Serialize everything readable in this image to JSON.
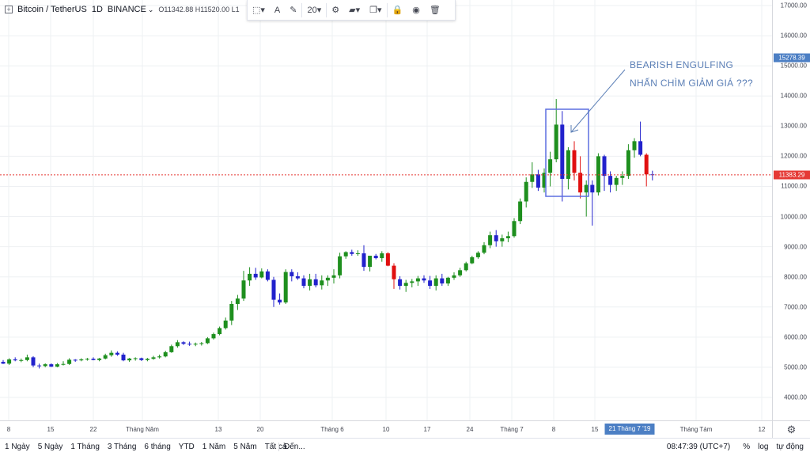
{
  "header": {
    "symbol": "Bitcoin / TetherUS",
    "interval": "1D",
    "exchange": "BINANCE",
    "exchange_caret": "⌄",
    "open": "O11342.88",
    "high": "H11520.00",
    "low": "L1"
  },
  "toolbar": {
    "items": [
      {
        "name": "selection-tool",
        "icon": "dashed-square-icon",
        "label": "⬚▾"
      },
      {
        "name": "text-color",
        "icon": "letter-a-icon",
        "label": "A"
      },
      {
        "name": "line-color",
        "icon": "pencil-icon",
        "label": "✎"
      },
      {
        "name": "font-size",
        "icon": "font-size",
        "label": "20▾"
      },
      {
        "name": "settings",
        "icon": "gear-icon",
        "label": "⚙"
      },
      {
        "name": "template",
        "icon": "template-icon",
        "label": "▰▾"
      },
      {
        "name": "clone",
        "icon": "clone-icon",
        "label": "❐▾"
      },
      {
        "name": "lock",
        "icon": "lock-icon",
        "label": "🔒"
      },
      {
        "name": "visibility",
        "icon": "eye-icon",
        "label": "◉"
      },
      {
        "name": "delete",
        "icon": "trash-icon",
        "label": "🗑"
      }
    ]
  },
  "annotation": {
    "line1": "BEARISH ENGULFING",
    "line2": "NHẤN CHÌM GIẢM GIÁ ???"
  },
  "price_axis": {
    "ticks": [
      "17000.00",
      "16000.00",
      "15000.00",
      "14000.00",
      "13000.00",
      "12000.00",
      "11000.00",
      "10000.00",
      "9000.00",
      "8000.00",
      "7000.00",
      "6000.00",
      "5000.00",
      "4000.00"
    ],
    "crosshair_label": "15278.39",
    "last_price_label": "11383.29"
  },
  "time_axis": {
    "ticks": [
      "8",
      "15",
      "22",
      "Tháng Năm",
      "13",
      "20",
      "Tháng 6",
      "10",
      "17",
      "24",
      "Tháng 7",
      "8",
      "15",
      "Tháng Tám",
      "12"
    ],
    "cursor_label": "21 Tháng 7 '19"
  },
  "bottom_bar": {
    "ranges": [
      "1 Ngày",
      "5 Ngày",
      "1 Tháng",
      "3 Tháng",
      "6 tháng",
      "YTD",
      "1 Năm",
      "5 Năm",
      "Tất cả"
    ],
    "goto": "Đến...",
    "time": "08:47:39 (UTC+7)",
    "percent": "%",
    "log": "log",
    "auto": "tự động"
  },
  "colors": {
    "bull": "#1e8f1e",
    "bear_dark": "#2222cc",
    "bear_red": "#e01010",
    "last_price": "#e53935",
    "crosshair_tag": "#4c7fc4",
    "box": "#5c6fe0",
    "annotation": "#5b7fb6"
  },
  "chart_data": {
    "type": "candlestick",
    "symbol": "Bitcoin / TetherUS",
    "interval": "1D",
    "ylim": [
      3600,
      17300
    ],
    "last_price": 11383.29,
    "candles": [
      {
        "o": 5180,
        "h": 5240,
        "l": 5110,
        "c": 5120
      },
      {
        "o": 5120,
        "h": 5300,
        "l": 5080,
        "c": 5260
      },
      {
        "o": 5260,
        "h": 5330,
        "l": 5200,
        "c": 5230
      },
      {
        "o": 5230,
        "h": 5290,
        "l": 5170,
        "c": 5240
      },
      {
        "o": 5240,
        "h": 5420,
        "l": 5200,
        "c": 5330
      },
      {
        "o": 5330,
        "h": 5370,
        "l": 5000,
        "c": 5060
      },
      {
        "o": 5060,
        "h": 5120,
        "l": 4960,
        "c": 5040
      },
      {
        "o": 5040,
        "h": 5130,
        "l": 5000,
        "c": 5100
      },
      {
        "o": 5100,
        "h": 5130,
        "l": 5010,
        "c": 5020
      },
      {
        "o": 5020,
        "h": 5140,
        "l": 5000,
        "c": 5100
      },
      {
        "o": 5100,
        "h": 5200,
        "l": 5060,
        "c": 5110
      },
      {
        "o": 5110,
        "h": 5300,
        "l": 5080,
        "c": 5250
      },
      {
        "o": 5250,
        "h": 5270,
        "l": 5180,
        "c": 5230
      },
      {
        "o": 5230,
        "h": 5300,
        "l": 5200,
        "c": 5260
      },
      {
        "o": 5260,
        "h": 5310,
        "l": 5220,
        "c": 5280
      },
      {
        "o": 5280,
        "h": 5330,
        "l": 5230,
        "c": 5240
      },
      {
        "o": 5240,
        "h": 5310,
        "l": 5200,
        "c": 5290
      },
      {
        "o": 5290,
        "h": 5450,
        "l": 5260,
        "c": 5400
      },
      {
        "o": 5400,
        "h": 5560,
        "l": 5350,
        "c": 5480
      },
      {
        "o": 5480,
        "h": 5530,
        "l": 5380,
        "c": 5420
      },
      {
        "o": 5420,
        "h": 5480,
        "l": 5200,
        "c": 5230
      },
      {
        "o": 5230,
        "h": 5310,
        "l": 5180,
        "c": 5290
      },
      {
        "o": 5290,
        "h": 5330,
        "l": 5220,
        "c": 5300
      },
      {
        "o": 5300,
        "h": 5320,
        "l": 5210,
        "c": 5240
      },
      {
        "o": 5240,
        "h": 5310,
        "l": 5200,
        "c": 5280
      },
      {
        "o": 5280,
        "h": 5380,
        "l": 5250,
        "c": 5330
      },
      {
        "o": 5330,
        "h": 5420,
        "l": 5290,
        "c": 5360
      },
      {
        "o": 5360,
        "h": 5550,
        "l": 5330,
        "c": 5500
      },
      {
        "o": 5500,
        "h": 5750,
        "l": 5480,
        "c": 5700
      },
      {
        "o": 5700,
        "h": 5900,
        "l": 5650,
        "c": 5830
      },
      {
        "o": 5830,
        "h": 5860,
        "l": 5740,
        "c": 5780
      },
      {
        "o": 5780,
        "h": 5850,
        "l": 5710,
        "c": 5760
      },
      {
        "o": 5760,
        "h": 5820,
        "l": 5700,
        "c": 5780
      },
      {
        "o": 5780,
        "h": 5840,
        "l": 5720,
        "c": 5800
      },
      {
        "o": 5800,
        "h": 6000,
        "l": 5770,
        "c": 5960
      },
      {
        "o": 5960,
        "h": 6150,
        "l": 5920,
        "c": 6100
      },
      {
        "o": 6100,
        "h": 6350,
        "l": 6060,
        "c": 6300
      },
      {
        "o": 6300,
        "h": 6650,
        "l": 6250,
        "c": 6550
      },
      {
        "o": 6550,
        "h": 7200,
        "l": 6400,
        "c": 7100
      },
      {
        "o": 7100,
        "h": 7400,
        "l": 6900,
        "c": 7280
      },
      {
        "o": 7280,
        "h": 8200,
        "l": 7200,
        "c": 7880
      },
      {
        "o": 7880,
        "h": 8320,
        "l": 7700,
        "c": 8100
      },
      {
        "o": 8100,
        "h": 8300,
        "l": 7900,
        "c": 7980
      },
      {
        "o": 7980,
        "h": 8280,
        "l": 7950,
        "c": 8180
      },
      {
        "o": 8180,
        "h": 8250,
        "l": 7850,
        "c": 7900
      },
      {
        "o": 7900,
        "h": 8000,
        "l": 7000,
        "c": 7240
      },
      {
        "o": 7240,
        "h": 7450,
        "l": 7080,
        "c": 7150
      },
      {
        "o": 7150,
        "h": 8250,
        "l": 7100,
        "c": 8160
      },
      {
        "o": 8160,
        "h": 8250,
        "l": 7850,
        "c": 8020
      },
      {
        "o": 8020,
        "h": 8150,
        "l": 7900,
        "c": 7950
      },
      {
        "o": 7950,
        "h": 8050,
        "l": 7620,
        "c": 7700
      },
      {
        "o": 7700,
        "h": 8100,
        "l": 7550,
        "c": 7920
      },
      {
        "o": 7920,
        "h": 8100,
        "l": 7650,
        "c": 7720
      },
      {
        "o": 7720,
        "h": 8050,
        "l": 7580,
        "c": 7880
      },
      {
        "o": 7880,
        "h": 8050,
        "l": 7700,
        "c": 7970
      },
      {
        "o": 7970,
        "h": 8250,
        "l": 7780,
        "c": 8050
      },
      {
        "o": 8050,
        "h": 8800,
        "l": 7950,
        "c": 8680
      },
      {
        "o": 8680,
        "h": 8850,
        "l": 8600,
        "c": 8820
      },
      {
        "o": 8820,
        "h": 8900,
        "l": 8700,
        "c": 8760
      },
      {
        "o": 8760,
        "h": 8880,
        "l": 8700,
        "c": 8780
      },
      {
        "o": 8780,
        "h": 9050,
        "l": 8200,
        "c": 8330
      },
      {
        "o": 8330,
        "h": 8680,
        "l": 8180,
        "c": 8700
      },
      {
        "o": 8700,
        "h": 8760,
        "l": 8580,
        "c": 8620
      },
      {
        "o": 8620,
        "h": 8850,
        "l": 8500,
        "c": 8780
      },
      {
        "o": 8780,
        "h": 8820,
        "l": 8350,
        "c": 8370
      },
      {
        "o": 8370,
        "h": 8450,
        "l": 7600,
        "c": 7920
      },
      {
        "o": 7920,
        "h": 8020,
        "l": 7580,
        "c": 7700
      },
      {
        "o": 7700,
        "h": 7900,
        "l": 7500,
        "c": 7800
      },
      {
        "o": 7800,
        "h": 7930,
        "l": 7650,
        "c": 7850
      },
      {
        "o": 7850,
        "h": 8030,
        "l": 7700,
        "c": 7950
      },
      {
        "o": 7950,
        "h": 8050,
        "l": 7800,
        "c": 7880
      },
      {
        "o": 7880,
        "h": 8030,
        "l": 7600,
        "c": 7700
      },
      {
        "o": 7700,
        "h": 8050,
        "l": 7550,
        "c": 7950
      },
      {
        "o": 7950,
        "h": 8100,
        "l": 7700,
        "c": 7780
      },
      {
        "o": 7780,
        "h": 8000,
        "l": 7700,
        "c": 7970
      },
      {
        "o": 7970,
        "h": 8150,
        "l": 7900,
        "c": 8050
      },
      {
        "o": 8050,
        "h": 8300,
        "l": 8000,
        "c": 8220
      },
      {
        "o": 8220,
        "h": 8500,
        "l": 8180,
        "c": 8450
      },
      {
        "o": 8450,
        "h": 8700,
        "l": 8420,
        "c": 8650
      },
      {
        "o": 8650,
        "h": 8850,
        "l": 8600,
        "c": 8800
      },
      {
        "o": 8800,
        "h": 9150,
        "l": 8750,
        "c": 9050
      },
      {
        "o": 9050,
        "h": 9500,
        "l": 8950,
        "c": 9380
      },
      {
        "o": 9380,
        "h": 9550,
        "l": 9000,
        "c": 9180
      },
      {
        "o": 9180,
        "h": 9400,
        "l": 9000,
        "c": 9280
      },
      {
        "o": 9280,
        "h": 9500,
        "l": 9150,
        "c": 9350
      },
      {
        "o": 9350,
        "h": 9950,
        "l": 9300,
        "c": 9850
      },
      {
        "o": 9850,
        "h": 10600,
        "l": 9750,
        "c": 10500
      },
      {
        "o": 10500,
        "h": 11300,
        "l": 10300,
        "c": 11150
      },
      {
        "o": 11150,
        "h": 11800,
        "l": 10950,
        "c": 11400
      },
      {
        "o": 11400,
        "h": 11550,
        "l": 10850,
        "c": 10960
      },
      {
        "o": 10960,
        "h": 11600,
        "l": 10800,
        "c": 11450
      },
      {
        "o": 11450,
        "h": 12150,
        "l": 11000,
        "c": 11900
      },
      {
        "o": 11900,
        "h": 13900,
        "l": 11800,
        "c": 13050
      },
      {
        "o": 13050,
        "h": 13500,
        "l": 10500,
        "c": 11250
      },
      {
        "o": 11250,
        "h": 12300,
        "l": 10900,
        "c": 12200
      },
      {
        "o": 12200,
        "h": 12500,
        "l": 11200,
        "c": 11450
      },
      {
        "o": 11450,
        "h": 12000,
        "l": 10600,
        "c": 10800
      },
      {
        "o": 10800,
        "h": 11200,
        "l": 10000,
        "c": 11050
      },
      {
        "o": 11050,
        "h": 11200,
        "l": 9700,
        "c": 10800
      },
      {
        "o": 10800,
        "h": 12100,
        "l": 10700,
        "c": 12000
      },
      {
        "o": 12000,
        "h": 12050,
        "l": 10850,
        "c": 11350
      },
      {
        "o": 11350,
        "h": 11500,
        "l": 10800,
        "c": 11050
      },
      {
        "o": 11050,
        "h": 11350,
        "l": 10850,
        "c": 11280
      },
      {
        "o": 11280,
        "h": 11500,
        "l": 11050,
        "c": 11350
      },
      {
        "o": 11350,
        "h": 12400,
        "l": 11250,
        "c": 12200
      },
      {
        "o": 12200,
        "h": 12600,
        "l": 11950,
        "c": 12500
      },
      {
        "o": 12500,
        "h": 13150,
        "l": 12000,
        "c": 12050
      },
      {
        "o": 12050,
        "h": 12100,
        "l": 11000,
        "c": 11400
      },
      {
        "o": 11400,
        "h": 11520,
        "l": 11200,
        "c": 11383
      }
    ]
  }
}
